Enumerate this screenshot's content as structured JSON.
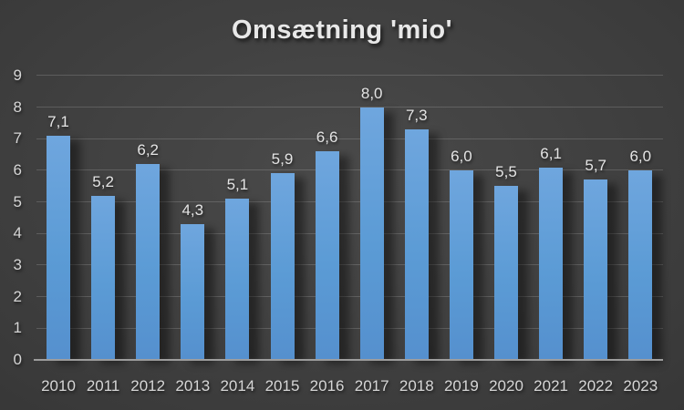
{
  "chart_data": {
    "type": "bar",
    "title": "Omsætning 'mio'",
    "categories": [
      "2010",
      "2011",
      "2012",
      "2013",
      "2014",
      "2015",
      "2016",
      "2017",
      "2018",
      "2019",
      "2020",
      "2021",
      "2022",
      "2023"
    ],
    "values": [
      7.1,
      5.2,
      6.2,
      4.3,
      5.1,
      5.9,
      6.6,
      8.0,
      7.3,
      6.0,
      5.5,
      6.1,
      5.7,
      6.0
    ],
    "value_labels": [
      "7,1",
      "5,2",
      "6,2",
      "4,3",
      "5,1",
      "5,9",
      "6,6",
      "8,0",
      "7,3",
      "6,0",
      "5,5",
      "6,1",
      "5,7",
      "6,0"
    ],
    "xlabel": "",
    "ylabel": "",
    "ylim": [
      0,
      9
    ],
    "y_ticks": [
      "0",
      "1",
      "2",
      "3",
      "4",
      "5",
      "6",
      "7",
      "8",
      "9"
    ],
    "grid": true,
    "legend_position": "none",
    "colors": {
      "bar_base": "#5B9BD5",
      "bar_gradient_top": "#6FA6DE",
      "bar_gradient_bottom": "#5590CE",
      "background_center": "#4a4a4a",
      "background_edge": "#272727",
      "gridline": "rgba(255,255,255,0.16)",
      "axis_line": "#9d9d9d",
      "tick_label": "#d6d6d6",
      "value_label": "#e4e4e4",
      "title": "#e8e8e8"
    }
  }
}
